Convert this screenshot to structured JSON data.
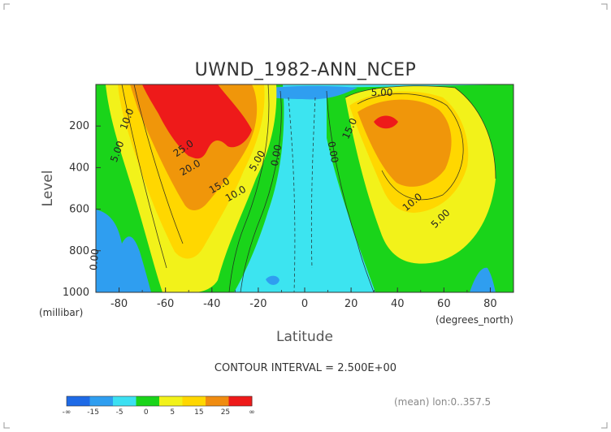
{
  "chart_data": {
    "type": "heatmap",
    "title": "UWND_1982-ANN_NCEP",
    "xlabel": "Latitude",
    "ylabel": "Level",
    "x_unit": "(degrees_north)",
    "y_unit": "(millibar)",
    "xlim": [
      -90,
      90
    ],
    "ylim": [
      1000,
      0
    ],
    "x_ticks": [
      "-80",
      "-60",
      "-40",
      "-20",
      "0",
      "20",
      "40",
      "60",
      "80"
    ],
    "y_ticks": [
      "200",
      "400",
      "600",
      "800",
      "1000"
    ],
    "contour_interval_text": "CONTOUR INTERVAL = 2.500E+00",
    "footer_text": "(mean) lon:0..357.5",
    "contour_labels": [
      "10.0",
      "5.00",
      "25.0",
      "20.0",
      "15.0",
      "10.0",
      "5.00",
      "0.00",
      "0.00",
      "5.00",
      "15.0",
      "10.0",
      "5.00",
      "0.00"
    ],
    "legend": {
      "labels": [
        "-∞",
        "-15",
        "-5",
        "0",
        "5",
        "15",
        "25",
        "∞"
      ],
      "colors": [
        "#1e6ae6",
        "#2f9ef0",
        "#3ce0f2",
        "#1ad41a",
        "#f2f21a",
        "#ffd700",
        "#f08c10",
        "#ee1a1a"
      ]
    },
    "colors": {
      "cyan": "#3ce4f0",
      "green": "#1ad41a",
      "yellow": "#f2f21a",
      "gold": "#ffd700",
      "orange": "#f0960a",
      "red": "#ee1a1a",
      "blue": "#2f9ef0"
    },
    "max_values": {
      "southern_jet_core": 25,
      "northern_jet_core": 25
    }
  }
}
